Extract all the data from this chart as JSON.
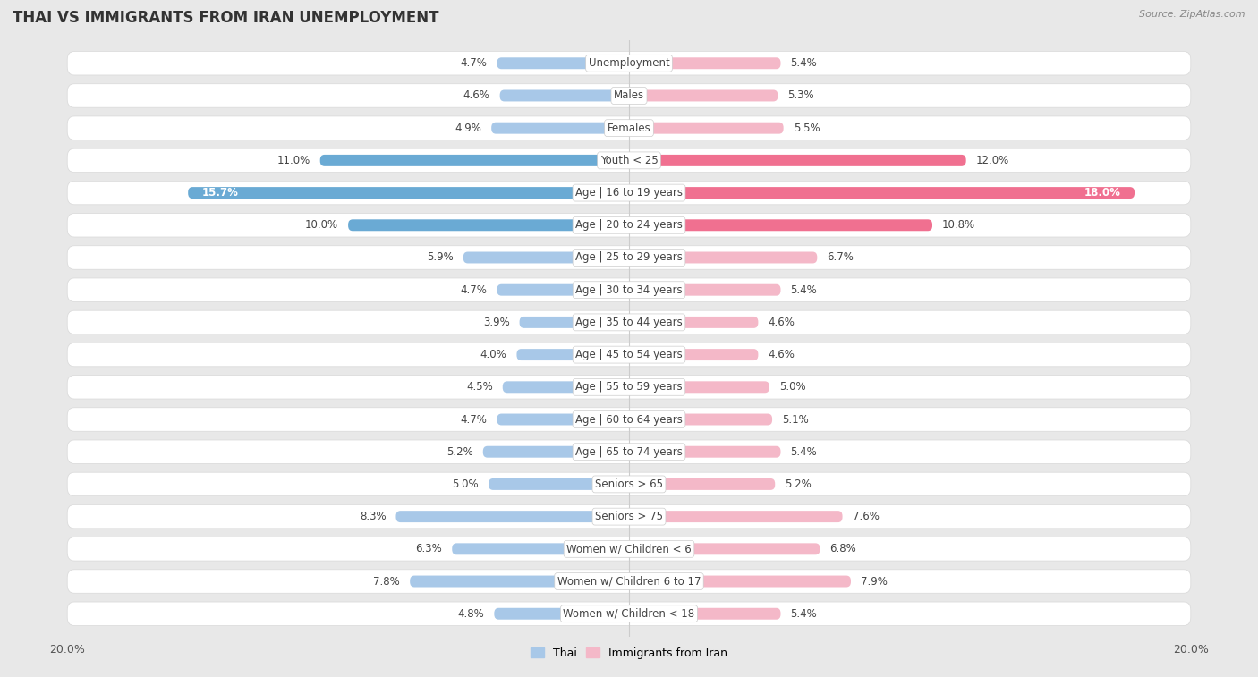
{
  "title": "Thai vs Immigrants from Iran Unemployment",
  "source": "Source: ZipAtlas.com",
  "categories": [
    "Unemployment",
    "Males",
    "Females",
    "Youth < 25",
    "Age | 16 to 19 years",
    "Age | 20 to 24 years",
    "Age | 25 to 29 years",
    "Age | 30 to 34 years",
    "Age | 35 to 44 years",
    "Age | 45 to 54 years",
    "Age | 55 to 59 years",
    "Age | 60 to 64 years",
    "Age | 65 to 74 years",
    "Seniors > 65",
    "Seniors > 75",
    "Women w/ Children < 6",
    "Women w/ Children 6 to 17",
    "Women w/ Children < 18"
  ],
  "thai_values": [
    4.7,
    4.6,
    4.9,
    11.0,
    15.7,
    10.0,
    5.9,
    4.7,
    3.9,
    4.0,
    4.5,
    4.7,
    5.2,
    5.0,
    8.3,
    6.3,
    7.8,
    4.8
  ],
  "iran_values": [
    5.4,
    5.3,
    5.5,
    12.0,
    18.0,
    10.8,
    6.7,
    5.4,
    4.6,
    4.6,
    5.0,
    5.1,
    5.4,
    5.2,
    7.6,
    6.8,
    7.9,
    5.4
  ],
  "thai_color_normal": "#a8c8e8",
  "thai_color_highlight": "#6aaad4",
  "iran_color_normal": "#f4b8c8",
  "iran_color_highlight": "#f07090",
  "bg_outer": "#e8e8e8",
  "row_bg": "#f5f5f5",
  "row_border": "#d8d8d8",
  "max_val": 20.0,
  "legend_thai": "Thai",
  "legend_iran": "Immigrants from Iran",
  "title_fontsize": 12,
  "label_fontsize": 8.5,
  "value_fontsize": 8.5
}
